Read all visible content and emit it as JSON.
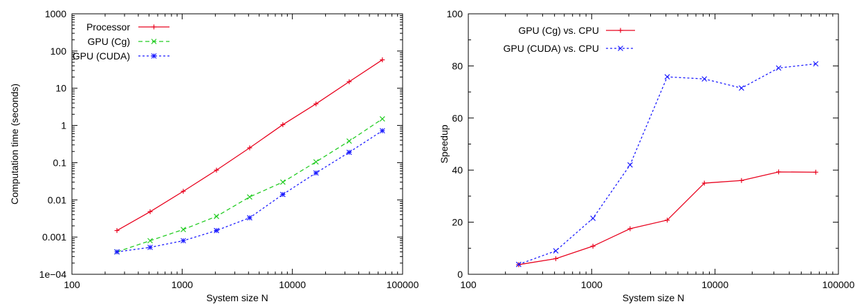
{
  "chart_data": [
    {
      "type": "line",
      "xlabel": "System size N",
      "ylabel": "Computation time (seconds)",
      "xscale": "log",
      "yscale": "log",
      "xlim": [
        100,
        100000
      ],
      "ylim": [
        0.0001,
        1000
      ],
      "xticks": [
        100,
        1000,
        10000,
        100000
      ],
      "xtick_labels": [
        "100",
        "1000",
        "10000",
        "100000"
      ],
      "yticks": [
        0.0001,
        0.001,
        0.01,
        0.1,
        1,
        10,
        100,
        1000
      ],
      "ytick_labels": [
        "1e−04",
        "0.001",
        "0.01",
        "0.1",
        "1",
        "10",
        "100",
        "1000"
      ],
      "legend_position": "top-left",
      "x": [
        256,
        512,
        1024,
        2048,
        4096,
        8192,
        16384,
        32768,
        65536
      ],
      "series": [
        {
          "name": "Processor",
          "color": "#e8001c",
          "dash": "solid",
          "marker": "plus",
          "values": [
            0.0015,
            0.0048,
            0.017,
            0.063,
            0.25,
            1.05,
            3.8,
            15.0,
            58.0
          ]
        },
        {
          "name": "GPU (Cg)",
          "color": "#22cc22",
          "dash": "dashed",
          "marker": "cross",
          "values": [
            0.0004,
            0.0008,
            0.0016,
            0.0036,
            0.012,
            0.03,
            0.105,
            0.38,
            1.5
          ]
        },
        {
          "name": "GPU (CUDA)",
          "color": "#1a1aff",
          "dash": "dotted",
          "marker": "star",
          "values": [
            0.0004,
            0.00053,
            0.0008,
            0.0015,
            0.0033,
            0.014,
            0.053,
            0.19,
            0.72
          ]
        }
      ]
    },
    {
      "type": "line",
      "xlabel": "System size N",
      "ylabel": "Speedup",
      "xscale": "log",
      "yscale": "linear",
      "xlim": [
        100,
        100000
      ],
      "ylim": [
        0,
        100
      ],
      "xticks": [
        100,
        1000,
        10000,
        100000
      ],
      "xtick_labels": [
        "100",
        "1000",
        "10000",
        "100000"
      ],
      "yticks": [
        0,
        20,
        40,
        60,
        80,
        100
      ],
      "ytick_labels": [
        "0",
        "20",
        "40",
        "60",
        "80",
        "100"
      ],
      "legend_position": "top-left",
      "x": [
        256,
        512,
        1024,
        2048,
        4096,
        8192,
        16384,
        32768,
        65536
      ],
      "series": [
        {
          "name": "GPU (Cg) vs. CPU",
          "color": "#e8001c",
          "dash": "solid",
          "marker": "plus",
          "values": [
            3.7,
            6.0,
            10.8,
            17.5,
            20.8,
            35.0,
            36.0,
            39.3,
            39.2
          ]
        },
        {
          "name": "GPU (CUDA) vs. CPU",
          "color": "#1a1aff",
          "dash": "dotted",
          "marker": "cross",
          "values": [
            3.8,
            9.0,
            21.5,
            42.0,
            75.8,
            75.0,
            71.5,
            79.2,
            80.8
          ]
        }
      ]
    }
  ]
}
